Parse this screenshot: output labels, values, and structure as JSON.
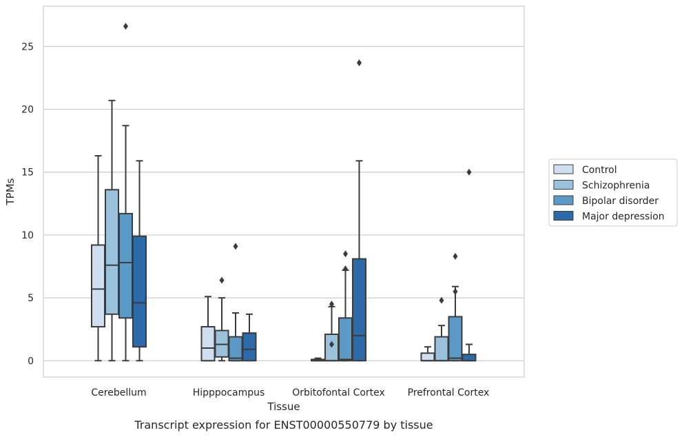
{
  "chart_data": {
    "type": "box",
    "xlabel": "Tissue",
    "ylabel": "TPMs",
    "caption": "Transcript expression for ENST00000550779 by tissue",
    "ylim": [
      -1.3,
      28.2
    ],
    "yticks": [
      0,
      5,
      10,
      15,
      20,
      25
    ],
    "grid": "horizontal",
    "legend_position": "right",
    "categories": [
      "Cerebellum",
      "Hipppocampus",
      "Orbitofontal Cortex",
      "Prefrontal Cortex"
    ],
    "series": [
      {
        "name": "Control",
        "color": "#cfdff0",
        "boxes": [
          {
            "whislo": 0,
            "q1": 2.7,
            "med": 5.7,
            "q3": 9.2,
            "whishi": 16.3,
            "fliers": []
          },
          {
            "whislo": 0,
            "q1": 0,
            "med": 1.0,
            "q3": 2.7,
            "whishi": 5.1,
            "fliers": []
          },
          {
            "whislo": 0,
            "q1": 0,
            "med": 0,
            "q3": 0.1,
            "whishi": 0.2,
            "fliers": []
          },
          {
            "whislo": 0,
            "q1": 0,
            "med": 0,
            "q3": 0.6,
            "whishi": 1.1,
            "fliers": []
          }
        ]
      },
      {
        "name": "Schizophrenia",
        "color": "#9ac2dc",
        "boxes": [
          {
            "whislo": 0,
            "q1": 3.7,
            "med": 7.6,
            "q3": 13.6,
            "whishi": 20.7,
            "fliers": []
          },
          {
            "whislo": 0,
            "q1": 0.3,
            "med": 1.3,
            "q3": 2.4,
            "whishi": 5.0,
            "fliers": [
              6.4
            ]
          },
          {
            "whislo": 0,
            "q1": 0,
            "med": 0,
            "q3": 2.1,
            "whishi": 4.3,
            "fliers": [
              4.5,
              1.3
            ]
          },
          {
            "whislo": 0,
            "q1": 0,
            "med": 0,
            "q3": 1.9,
            "whishi": 2.8,
            "fliers": [
              4.8
            ]
          }
        ]
      },
      {
        "name": "Bipolar disorder",
        "color": "#5b9ac6",
        "boxes": [
          {
            "whislo": 0,
            "q1": 3.4,
            "med": 7.8,
            "q3": 11.7,
            "whishi": 18.7,
            "fliers": [
              26.6
            ]
          },
          {
            "whislo": 0,
            "q1": 0,
            "med": 0.2,
            "q3": 1.9,
            "whishi": 3.8,
            "fliers": [
              9.1
            ]
          },
          {
            "whislo": 0,
            "q1": 0,
            "med": 0.1,
            "q3": 3.4,
            "whishi": 7.2,
            "fliers": [
              8.5,
              7.3
            ]
          },
          {
            "whislo": 0,
            "q1": 0,
            "med": 0.2,
            "q3": 3.5,
            "whishi": 5.9,
            "fliers": [
              8.3,
              5.5
            ]
          }
        ]
      },
      {
        "name": "Major depression",
        "color": "#2c6aa9",
        "boxes": [
          {
            "whislo": 0,
            "q1": 1.1,
            "med": 4.6,
            "q3": 9.9,
            "whishi": 15.9,
            "fliers": []
          },
          {
            "whislo": 0,
            "q1": 0,
            "med": 0.9,
            "q3": 2.2,
            "whishi": 3.7,
            "fliers": []
          },
          {
            "whislo": 0,
            "q1": 0,
            "med": 2.0,
            "q3": 8.1,
            "whishi": 15.9,
            "fliers": [
              23.7
            ]
          },
          {
            "whislo": 0,
            "q1": 0,
            "med": 0,
            "q3": 0.5,
            "whishi": 1.3,
            "fliers": [
              15.0
            ]
          }
        ]
      }
    ]
  }
}
